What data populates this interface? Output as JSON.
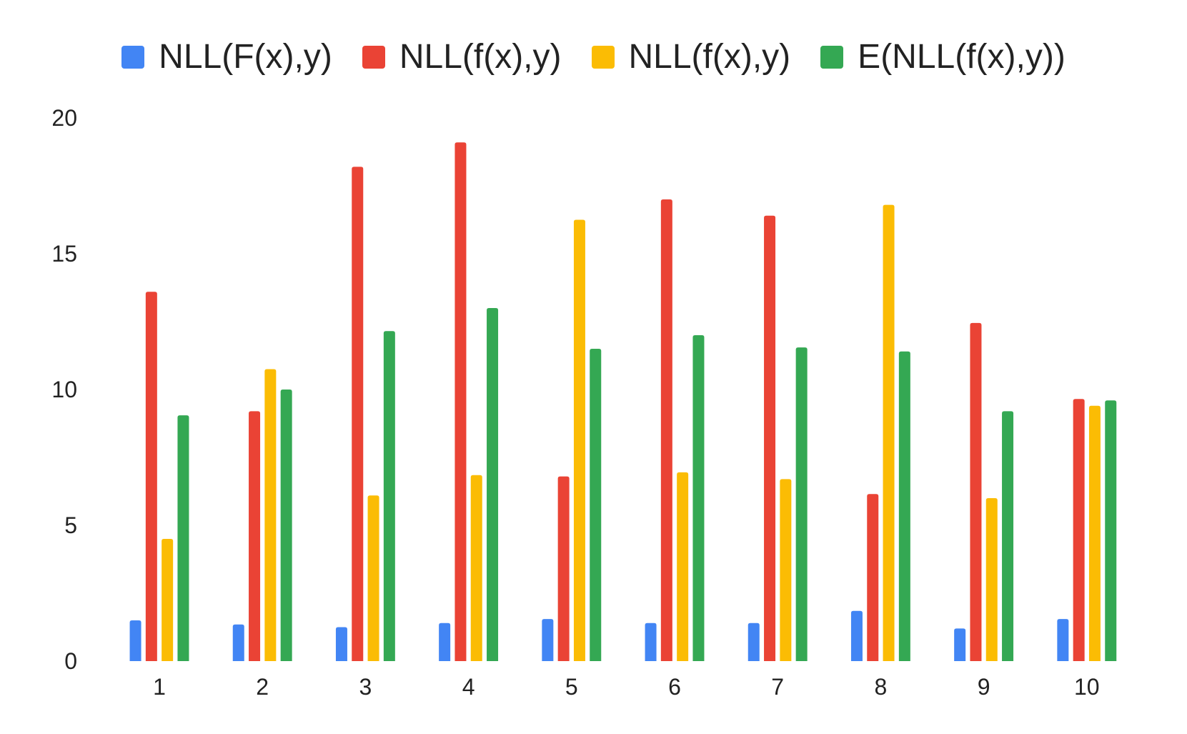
{
  "chart_data": {
    "type": "bar",
    "title": "",
    "xlabel": "",
    "ylabel": "",
    "ylim": [
      0,
      20
    ],
    "yticks": [
      "0",
      "5",
      "10",
      "15",
      "20"
    ],
    "grid": false,
    "legend_position": "top",
    "categories": [
      "1",
      "2",
      "3",
      "4",
      "5",
      "6",
      "7",
      "8",
      "9",
      "10"
    ],
    "series": [
      {
        "name": "NLL(F(x),y)",
        "color": "#4285F4",
        "values": [
          1.5,
          1.35,
          1.25,
          1.4,
          1.55,
          1.4,
          1.4,
          1.85,
          1.2,
          1.55
        ]
      },
      {
        "name": "NLL(f(x),y)",
        "color": "#EA4335",
        "values": [
          13.6,
          9.2,
          18.2,
          19.1,
          6.8,
          17.0,
          16.4,
          6.15,
          12.45,
          9.65
        ]
      },
      {
        "name": "NLL(f(x),y)",
        "color": "#FBBC04",
        "values": [
          4.5,
          10.75,
          6.1,
          6.85,
          16.25,
          6.95,
          6.7,
          16.8,
          6.0,
          9.4
        ]
      },
      {
        "name": "E(NLL(f(x),y))",
        "color": "#34A853",
        "values": [
          9.05,
          10.0,
          12.15,
          13.0,
          11.5,
          12.0,
          11.55,
          11.4,
          9.2,
          9.6
        ]
      }
    ]
  }
}
